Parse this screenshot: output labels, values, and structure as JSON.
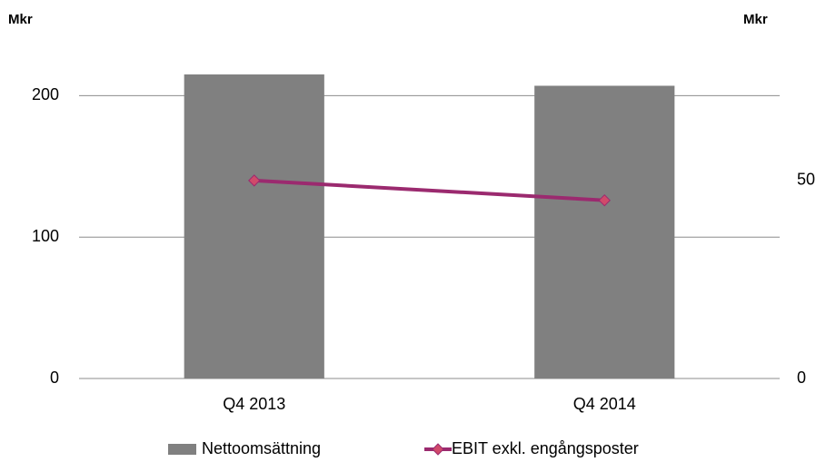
{
  "chart_data": {
    "type": "bar_line",
    "ylabel": "Mkr",
    "y2label": "Mkr",
    "categories": [
      "Q4 2013",
      "Q4 2014"
    ],
    "series": [
      {
        "name": "Nettoomsättning",
        "type": "bar",
        "color": "#808080",
        "values": [
          215,
          207
        ]
      },
      {
        "name": "EBIT exkl. engångsposter",
        "type": "line",
        "axis": "y2",
        "color": "#9b2a6f",
        "marker_color": "#d04a6a",
        "values": [
          50,
          45
        ]
      }
    ],
    "ylim": [
      0,
      224
    ],
    "yticks": [
      0,
      100,
      200
    ],
    "y2lim": [
      0,
      80
    ],
    "y2ticks": [
      0,
      50
    ],
    "grid": true,
    "legend": "bottom"
  }
}
